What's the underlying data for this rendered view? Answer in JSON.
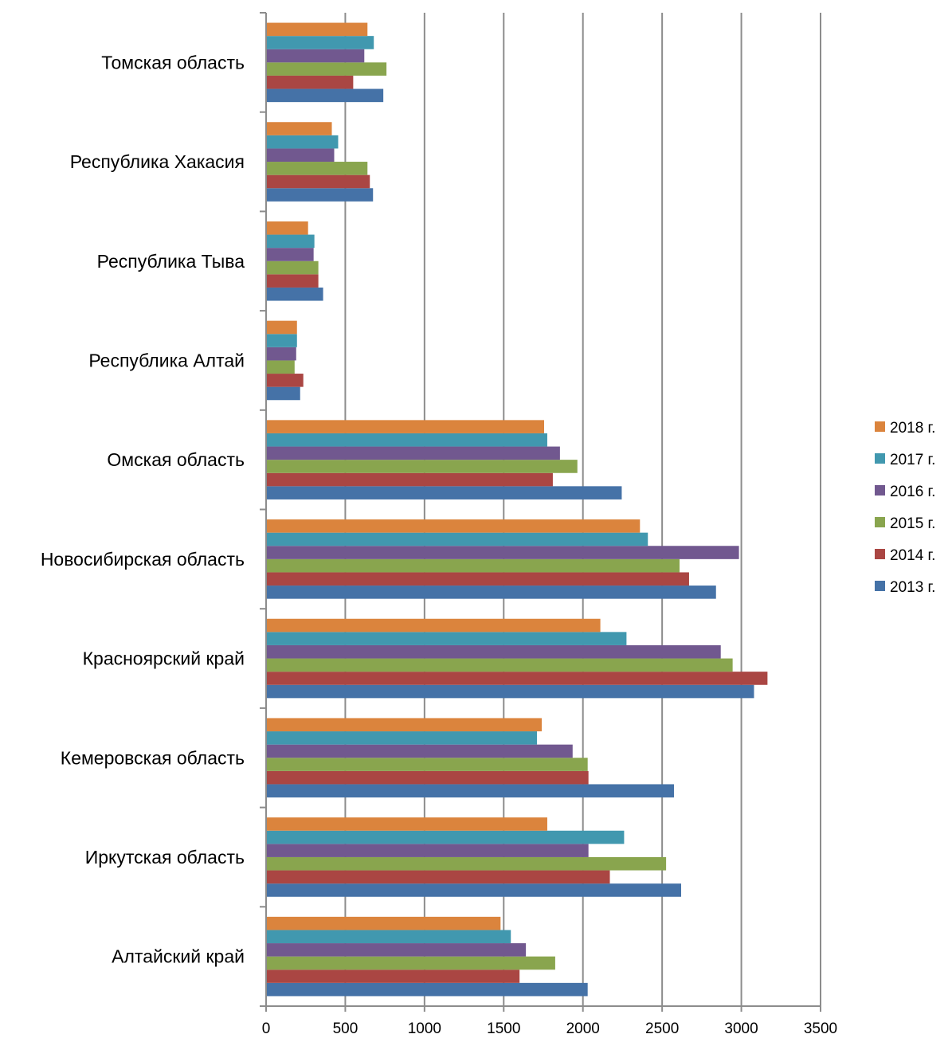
{
  "chart_data": {
    "type": "bar",
    "orientation": "horizontal",
    "categories": [
      "Алтайский край",
      "Иркутская область",
      "Кемеровская область",
      "Красноярский край",
      "Новосибирская область",
      "Омская область",
      "Республика Алтай",
      "Республика Тыва",
      "Республика Хакасия",
      "Томская область"
    ],
    "series": [
      {
        "name": "2013 г.",
        "color": "#4572A7",
        "values": [
          2030,
          2620,
          2575,
          3080,
          2840,
          2245,
          215,
          360,
          675,
          740
        ]
      },
      {
        "name": "2014 г.",
        "color": "#AA4643",
        "values": [
          1600,
          2170,
          2035,
          3165,
          2670,
          1810,
          235,
          330,
          655,
          550
        ]
      },
      {
        "name": "2015 г.",
        "color": "#89A54E",
        "values": [
          1825,
          2525,
          2030,
          2945,
          2610,
          1965,
          180,
          330,
          640,
          760
        ]
      },
      {
        "name": "2016 г.",
        "color": "#71588F",
        "values": [
          1640,
          2035,
          1935,
          2870,
          2985,
          1855,
          190,
          300,
          430,
          620
        ]
      },
      {
        "name": "2017 г.",
        "color": "#4198AF",
        "values": [
          1545,
          2260,
          1710,
          2275,
          2410,
          1775,
          195,
          305,
          455,
          680
        ]
      },
      {
        "name": "2018 г.",
        "color": "#DB843D",
        "values": [
          1480,
          1775,
          1740,
          2110,
          2360,
          1755,
          195,
          265,
          415,
          640
        ]
      }
    ],
    "xlim": [
      0,
      3500
    ],
    "x_ticks": [
      "0",
      "500",
      "1000",
      "1500",
      "2000",
      "2500",
      "3000",
      "3500"
    ],
    "grid": true,
    "legend_position": "right",
    "legend_order": [
      "2018 г.",
      "2017 г.",
      "2016 г.",
      "2015 г.",
      "2014 г.",
      "2013 г."
    ],
    "title": "",
    "xlabel": "",
    "ylabel": ""
  }
}
